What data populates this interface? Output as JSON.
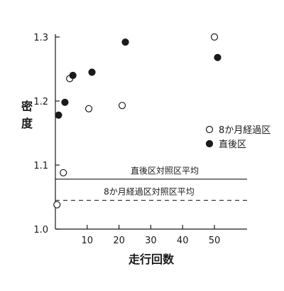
{
  "chart_data": {
    "type": "scatter",
    "xlabel": "走行回数",
    "ylabel": "密度",
    "xlim": [
      0,
      60
    ],
    "ylim": [
      1.0,
      1.3
    ],
    "xticks": [
      10,
      20,
      30,
      40,
      50
    ],
    "yticks": [
      1.0,
      1.1,
      1.2,
      1.3
    ],
    "ytick_labels": [
      "1.0",
      "1.1",
      "1.2",
      "1.3"
    ],
    "grid": false,
    "legend_position": "right",
    "series": [
      {
        "name": "8か月経過区",
        "marker": "open-circle",
        "points": [
          {
            "x": 0.5,
            "y": 1.038
          },
          {
            "x": 2.5,
            "y": 1.088
          },
          {
            "x": 4.5,
            "y": 1.235
          },
          {
            "x": 10.5,
            "y": 1.188
          },
          {
            "x": 21,
            "y": 1.193
          },
          {
            "x": 50,
            "y": 1.3
          }
        ]
      },
      {
        "name": "直後区",
        "marker": "filled-circle",
        "points": [
          {
            "x": 1,
            "y": 1.178
          },
          {
            "x": 3,
            "y": 1.198
          },
          {
            "x": 5.5,
            "y": 1.24
          },
          {
            "x": 11.5,
            "y": 1.245
          },
          {
            "x": 22,
            "y": 1.292
          },
          {
            "x": 51,
            "y": 1.268
          }
        ]
      }
    ],
    "reference_lines": [
      {
        "label": "直後区対照区平均",
        "y": 1.078,
        "style": "solid"
      },
      {
        "label": "8か月経過区対照区平均",
        "y": 1.045,
        "style": "dashed"
      }
    ]
  }
}
